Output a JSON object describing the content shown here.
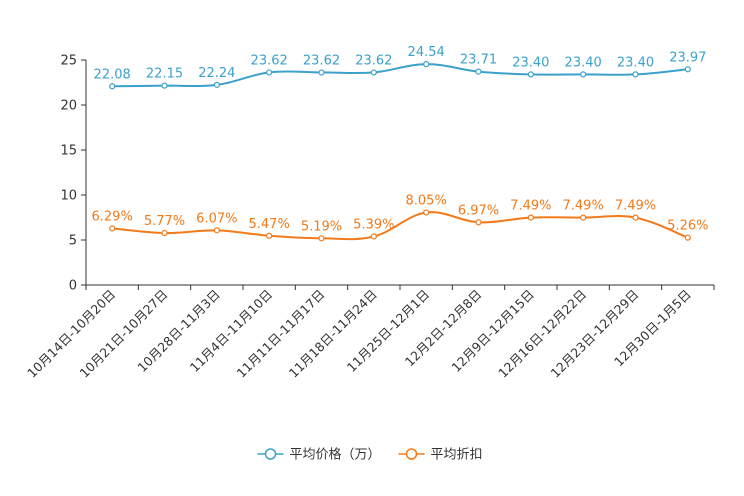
{
  "chart_data": {
    "type": "line",
    "title": "",
    "xlabel": "",
    "ylabel": "",
    "ylim": [
      0,
      25
    ],
    "yticks": [
      0,
      5,
      10,
      15,
      20,
      25
    ],
    "grid": false,
    "legend_position": "bottom-center",
    "categories": [
      "10月14日-10月20日",
      "10月21日-10月27日",
      "10月28日-11月3日",
      "11月4日-11月10日",
      "11月11日-11月17日",
      "11月18日-11月24日",
      "11月25日-12月1日",
      "12月2日-12月8日",
      "12月9日-12月15日",
      "12月16日-12月22日",
      "12月23日-12月29日",
      "12月30日-1月5日"
    ],
    "series": [
      {
        "name": "平均价格（万）",
        "color": "#3ba1cc",
        "values": [
          22.08,
          22.15,
          22.24,
          23.62,
          23.62,
          23.62,
          24.54,
          23.71,
          23.4,
          23.4,
          23.4,
          23.97
        ],
        "labels": [
          "22.08",
          "22.15",
          "22.24",
          "23.62",
          "23.62",
          "23.62",
          "24.54",
          "23.71",
          "23.40",
          "23.40",
          "23.40",
          "23.97"
        ]
      },
      {
        "name": "平均折扣",
        "color": "#f27a1a",
        "values": [
          6.29,
          5.77,
          6.07,
          5.47,
          5.19,
          5.39,
          8.05,
          6.97,
          7.49,
          7.49,
          7.49,
          5.26
        ],
        "labels": [
          "6.29%",
          "5.77%",
          "6.07%",
          "5.47%",
          "5.19%",
          "5.39%",
          "8.05%",
          "6.97%",
          "7.49%",
          "7.49%",
          "7.49%",
          "5.26%"
        ]
      }
    ]
  }
}
